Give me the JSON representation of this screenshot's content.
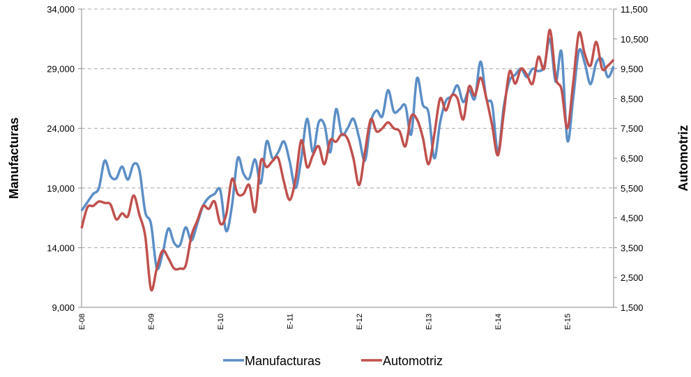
{
  "chart_data": {
    "type": "line",
    "categories": [
      "E-08",
      null,
      null,
      null,
      null,
      null,
      null,
      null,
      null,
      null,
      null,
      null,
      "E-09",
      null,
      null,
      null,
      null,
      null,
      null,
      null,
      null,
      null,
      null,
      null,
      "E-10",
      null,
      null,
      null,
      null,
      null,
      null,
      null,
      null,
      null,
      null,
      null,
      "E-11",
      null,
      null,
      null,
      null,
      null,
      null,
      null,
      null,
      null,
      null,
      null,
      "E-12",
      null,
      null,
      null,
      null,
      null,
      null,
      null,
      null,
      null,
      null,
      null,
      "E-13",
      null,
      null,
      null,
      null,
      null,
      null,
      null,
      null,
      null,
      null,
      null,
      "E-14",
      null,
      null,
      null,
      null,
      null,
      null,
      null,
      null,
      null,
      null,
      null,
      "E-15",
      null,
      null,
      null,
      null,
      null,
      null,
      null,
      null
    ],
    "ylabel": "Manufacturas",
    "y2label": "Automotriz",
    "ylim": [
      9000,
      34000
    ],
    "yticks": [
      {
        "value": 9000,
        "label": "9,000"
      },
      {
        "value": 14000,
        "label": "14,000"
      },
      {
        "value": 19000,
        "label": "19,000"
      },
      {
        "value": 24000,
        "label": "24,000"
      },
      {
        "value": 29000,
        "label": "29,000"
      },
      {
        "value": 34000,
        "label": "34,000"
      }
    ],
    "y2lim": [
      1500,
      11500
    ],
    "y2ticks": [
      {
        "value": 1500,
        "label": "1,500"
      },
      {
        "value": 2500,
        "label": "2,500"
      },
      {
        "value": 3500,
        "label": "3,500"
      },
      {
        "value": 4500,
        "label": "4,500"
      },
      {
        "value": 5500,
        "label": "5,500"
      },
      {
        "value": 6500,
        "label": "6,500"
      },
      {
        "value": 7500,
        "label": "7,500"
      },
      {
        "value": 8500,
        "label": "8,500"
      },
      {
        "value": 9500,
        "label": "9,500"
      },
      {
        "value": 10500,
        "label": "10,500"
      },
      {
        "value": 11500,
        "label": "11,500"
      }
    ],
    "grid": true,
    "legend": "bottom",
    "series": [
      {
        "name": "Manufacturas",
        "color": "#5b8ec6",
        "values": [
          17100,
          17800,
          18500,
          19000,
          21300,
          20000,
          19800,
          20800,
          19700,
          21000,
          20500,
          17000,
          16000,
          12300,
          13500,
          15600,
          14400,
          14200,
          15700,
          14600,
          16000,
          17500,
          18200,
          18500,
          18800,
          15400,
          17500,
          21500,
          20200,
          19800,
          21400,
          19400,
          22900,
          21500,
          22000,
          22900,
          21200,
          19000,
          21500,
          24800,
          22000,
          24500,
          24300,
          22000,
          25600,
          23500,
          24000,
          24800,
          23200,
          21300,
          24500,
          25500,
          25000,
          27200,
          25400,
          25600,
          25900,
          23500,
          28200,
          26000,
          25300,
          21500,
          24500,
          26300,
          26700,
          27600,
          26200,
          27200,
          26500,
          29600,
          26500,
          26000,
          22000,
          25800,
          28000,
          28500,
          29000,
          28300,
          29000,
          28800,
          29200,
          31500,
          27900,
          30400,
          23000,
          26500,
          30500,
          29500,
          27700,
          29500,
          29800,
          28300,
          29200
        ]
      },
      {
        "name": "Automotriz",
        "color": "#c0504d",
        "axis": "y2",
        "values": [
          4150,
          4850,
          4900,
          5050,
          5000,
          4950,
          4450,
          4650,
          4550,
          5250,
          4600,
          3900,
          2100,
          2800,
          3400,
          3150,
          2800,
          2800,
          2900,
          3900,
          4400,
          4900,
          4800,
          5050,
          4300,
          4600,
          5800,
          5300,
          5300,
          5600,
          4700,
          6400,
          6200,
          6400,
          6500,
          5700,
          5100,
          5800,
          7100,
          6200,
          6600,
          6900,
          6300,
          7100,
          7050,
          7300,
          7150,
          6500,
          5600,
          6700,
          7800,
          7400,
          7500,
          7700,
          7500,
          7400,
          6900,
          7900,
          7800,
          7200,
          6300,
          7300,
          8500,
          8100,
          8600,
          8500,
          7800,
          8900,
          8600,
          9200,
          8500,
          7600,
          6600,
          8000,
          9400,
          9000,
          9500,
          9300,
          9000,
          9900,
          9500,
          10800,
          9200,
          8800,
          7500,
          9000,
          10700,
          10000,
          9600,
          10400,
          9500,
          9600,
          9800
        ]
      }
    ]
  }
}
